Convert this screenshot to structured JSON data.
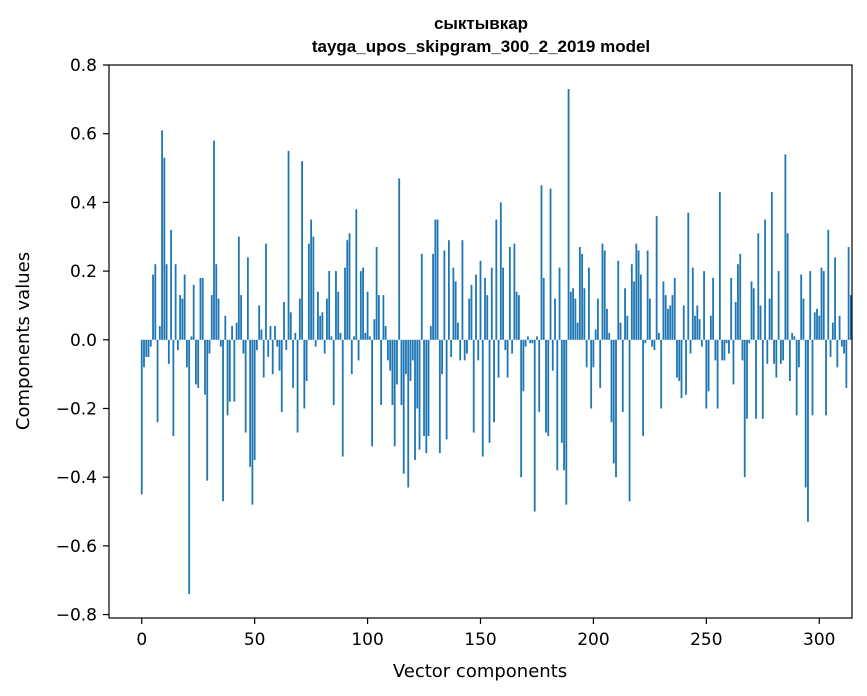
{
  "chart_data": {
    "type": "bar",
    "title": "сыктывкар",
    "subtitle": "tayga_upos_skipgram_300_2_2019 model",
    "xlabel": "Vector components",
    "ylabel": "Components values",
    "xlim": [
      -14.5,
      314.5
    ],
    "ylim": [
      -0.81,
      0.8
    ],
    "xticks": [
      0,
      50,
      100,
      150,
      200,
      250,
      300
    ],
    "xtick_labels": [
      "0",
      "50",
      "100",
      "150",
      "200",
      "250",
      "300"
    ],
    "yticks": [
      -0.8,
      -0.6,
      -0.4,
      -0.2,
      0.0,
      0.2,
      0.4,
      0.6,
      0.8
    ],
    "ytick_labels": [
      "−0.8",
      "−0.6",
      "−0.4",
      "−0.2",
      "0.0",
      "0.2",
      "0.4",
      "0.6",
      "0.8"
    ],
    "bar_color": "#1f77b4",
    "grid": false,
    "values": [
      -0.45,
      -0.08,
      -0.05,
      -0.05,
      -0.02,
      0.19,
      0.22,
      -0.24,
      0.04,
      0.61,
      0.53,
      0.22,
      -0.07,
      0.32,
      -0.28,
      0.22,
      -0.03,
      0.13,
      0.12,
      0.19,
      -0.08,
      -0.74,
      0.01,
      0.16,
      -0.13,
      -0.14,
      0.18,
      0.18,
      -0.16,
      -0.41,
      -0.04,
      0.13,
      0.58,
      0.22,
      0.12,
      -0.02,
      -0.47,
      0.07,
      -0.22,
      -0.18,
      0.04,
      -0.18,
      0.05,
      0.3,
      0.13,
      -0.04,
      -0.27,
      0.24,
      -0.37,
      -0.48,
      -0.35,
      -0.03,
      0.1,
      0.03,
      -0.11,
      0.28,
      -0.05,
      0.04,
      -0.1,
      0.04,
      -0.02,
      -0.09,
      -0.21,
      0.11,
      -0.03,
      0.55,
      0.08,
      -0.14,
      0.02,
      -0.27,
      0.12,
      0.52,
      -0.2,
      -0.12,
      0.28,
      0.35,
      0.3,
      -0.02,
      0.14,
      0.07,
      0.08,
      -0.04,
      0.12,
      0.2,
      0.01,
      -0.19,
      0.2,
      0.14,
      0.02,
      -0.34,
      0.21,
      0.29,
      0.31,
      -0.1,
      0.01,
      0.38,
      -0.06,
      0.2,
      0.21,
      0.02,
      0.14,
      0.01,
      -0.31,
      0.06,
      0.27,
      0.13,
      -0.19,
      0.13,
      0.04,
      -0.06,
      -0.09,
      -0.19,
      -0.31,
      -0.13,
      0.47,
      -0.19,
      -0.39,
      -0.1,
      -0.43,
      -0.12,
      -0.06,
      -0.35,
      -0.2,
      -0.32,
      0.25,
      -0.28,
      -0.33,
      -0.28,
      0.04,
      0.25,
      0.35,
      0.35,
      -0.33,
      -0.1,
      0.26,
      -0.29,
      0.29,
      -0.05,
      0.21,
      0.17,
      0.05,
      -0.06,
      0.29,
      -0.06,
      -0.04,
      0.12,
      0.16,
      -0.27,
      0.19,
      -0.06,
      0.23,
      -0.34,
      0.18,
      0.13,
      -0.3,
      0.21,
      -0.24,
      0.35,
      -0.11,
      0.4,
      0.21,
      -0.03,
      -0.11,
      0.27,
      -0.04,
      0.28,
      0.14,
      0.13,
      -0.4,
      -0.15,
      -0.02,
      0.01,
      -0.01,
      -0.01,
      -0.5,
      0.01,
      -0.21,
      0.45,
      0.18,
      -0.27,
      -0.28,
      0.44,
      -0.09,
      0.12,
      -0.38,
      0.21,
      -0.3,
      -0.38,
      -0.48,
      0.73,
      0.14,
      0.15,
      0.12,
      0.05,
      0.27,
      0.25,
      0.15,
      -0.08,
      0.21,
      -0.2,
      -0.08,
      0.03,
      0.12,
      -0.14,
      0.28,
      0.26,
      0.09,
      0.02,
      -0.24,
      -0.36,
      -0.4,
      0.23,
      0.05,
      -0.21,
      0.15,
      0.07,
      -0.47,
      0.22,
      0.17,
      0.28,
      0.26,
      0.19,
      -0.28,
      -0.01,
      0.26,
      0.12,
      -0.02,
      -0.03,
      0.36,
      0.02,
      -0.2,
      0.17,
      0.13,
      0.09,
      0.1,
      0.13,
      0.18,
      -0.11,
      -0.12,
      -0.17,
      0.1,
      -0.16,
      0.37,
      -0.04,
      0.21,
      0.07,
      0.1,
      0.06,
      -0.02,
      0.2,
      -0.2,
      -0.15,
      0.07,
      0.18,
      -0.06,
      -0.2,
      0.43,
      -0.06,
      -0.06,
      -0.01,
      -0.04,
      0.18,
      -0.13,
      0.11,
      0.22,
      0.25,
      -0.06,
      -0.4,
      -0.23,
      -0.01,
      0.17,
      0.15,
      -0.23,
      0.31,
      0.1,
      -0.23,
      0.35,
      -0.07,
      0.12,
      0.43,
      -0.07,
      -0.11,
      0.2,
      -0.07,
      -0.06,
      0.54,
      0.31,
      -0.12,
      0.02,
      0.01,
      -0.22,
      -0.08,
      0.19,
      0.12,
      -0.43,
      -0.53,
      0.2,
      -0.22,
      0.08,
      0.09,
      0.07,
      0.21,
      0.2,
      -0.22,
      0.32,
      -0.05,
      0.05,
      0.24,
      -0.08,
      0.07,
      -0.02,
      -0.04,
      -0.14,
      0.27,
      0.13
    ]
  }
}
